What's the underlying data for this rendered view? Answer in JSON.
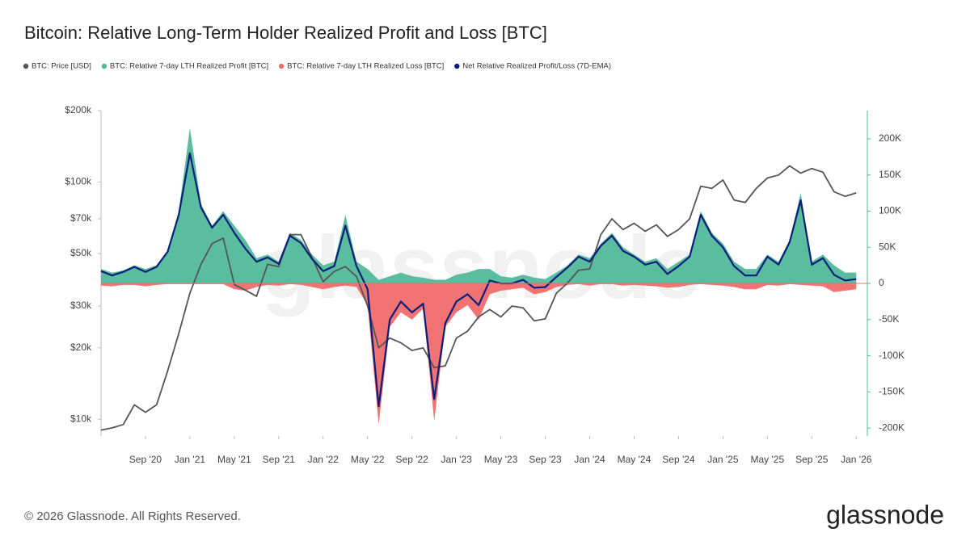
{
  "chart_data": {
    "type": "line",
    "title": "Bitcoin: Relative Long-Term Holder Realized Profit and Loss [BTC]",
    "footer": "© 2026 Glassnode. All Rights Reserved.",
    "brand": "glassnode",
    "watermark": "glassnode",
    "x": [
      "2020-05",
      "2020-06",
      "2020-07",
      "2020-08",
      "2020-09",
      "2020-10",
      "2020-11",
      "2020-12",
      "2021-01",
      "2021-02",
      "2021-03",
      "2021-04",
      "2021-05",
      "2021-06",
      "2021-07",
      "2021-08",
      "2021-09",
      "2021-10",
      "2021-11",
      "2021-12",
      "2022-01",
      "2022-02",
      "2022-03",
      "2022-04",
      "2022-05",
      "2022-06",
      "2022-07",
      "2022-08",
      "2022-09",
      "2022-10",
      "2022-11",
      "2022-12",
      "2023-01",
      "2023-02",
      "2023-03",
      "2023-04",
      "2023-05",
      "2023-06",
      "2023-07",
      "2023-08",
      "2023-09",
      "2023-10",
      "2023-11",
      "2023-12",
      "2024-01",
      "2024-02",
      "2024-03",
      "2024-04",
      "2024-05",
      "2024-06",
      "2024-07",
      "2024-08",
      "2024-09",
      "2024-10",
      "2024-11",
      "2024-12",
      "2025-01",
      "2025-02",
      "2025-03",
      "2025-04",
      "2025-05",
      "2025-06",
      "2025-07",
      "2025-08",
      "2025-09",
      "2025-10",
      "2025-11",
      "2025-12",
      "2026-01"
    ],
    "xlim": [
      "2020-05",
      "2026-02"
    ],
    "xticks": [
      {
        "value": "2020-09",
        "label": "Sep '20"
      },
      {
        "value": "2021-01",
        "label": "Jan '21"
      },
      {
        "value": "2021-05",
        "label": "May '21"
      },
      {
        "value": "2021-09",
        "label": "Sep '21"
      },
      {
        "value": "2022-01",
        "label": "Jan '22"
      },
      {
        "value": "2022-05",
        "label": "May '22"
      },
      {
        "value": "2022-09",
        "label": "Sep '22"
      },
      {
        "value": "2023-01",
        "label": "Jan '23"
      },
      {
        "value": "2023-05",
        "label": "May '23"
      },
      {
        "value": "2023-09",
        "label": "Sep '23"
      },
      {
        "value": "2024-01",
        "label": "Jan '24"
      },
      {
        "value": "2024-05",
        "label": "May '24"
      },
      {
        "value": "2024-09",
        "label": "Sep '24"
      },
      {
        "value": "2025-01",
        "label": "Jan '25"
      },
      {
        "value": "2025-05",
        "label": "May '25"
      },
      {
        "value": "2025-09",
        "label": "Sep '25"
      },
      {
        "value": "2026-01",
        "label": "Jan '26"
      }
    ],
    "ylog": true,
    "ylim": [
      8500,
      200000
    ],
    "yticks": [
      {
        "value": 10000,
        "label": "$10k"
      },
      {
        "value": 20000,
        "label": "$20k"
      },
      {
        "value": 30000,
        "label": "$30k"
      },
      {
        "value": 50000,
        "label": "$50k"
      },
      {
        "value": 70000,
        "label": "$70k"
      },
      {
        "value": 100000,
        "label": "$100k"
      },
      {
        "value": 200000,
        "label": "$200k"
      }
    ],
    "y2lim": [
      -211000,
      239000
    ],
    "y2ticks": [
      {
        "value": -200000,
        "label": "-200K"
      },
      {
        "value": -150000,
        "label": "-150K"
      },
      {
        "value": -100000,
        "label": "-100K"
      },
      {
        "value": -50000,
        "label": "-50K"
      },
      0,
      {
        "value": 50000,
        "label": "50K"
      },
      {
        "value": 100000,
        "label": "100K"
      },
      {
        "value": 150000,
        "label": "150K"
      },
      {
        "value": 200000,
        "label": "200K"
      }
    ],
    "y2_color": "#52b99a",
    "series": [
      {
        "name": "BTC: Price [USD]",
        "color": "#555555",
        "style": "line",
        "values": [
          9000,
          9200,
          9500,
          11500,
          10700,
          11500,
          16000,
          23000,
          34000,
          45000,
          55000,
          58000,
          37000,
          35000,
          33000,
          45000,
          44000,
          60000,
          60000,
          48000,
          38000,
          42000,
          44000,
          40000,
          30000,
          20000,
          22000,
          21000,
          19500,
          20000,
          16500,
          16800,
          22000,
          23500,
          27000,
          29000,
          27000,
          30000,
          29500,
          26000,
          26500,
          34000,
          37500,
          42500,
          43000,
          60000,
          70000,
          63000,
          67000,
          62000,
          66000,
          59000,
          63000,
          70000,
          96000,
          94000,
          102000,
          84000,
          82000,
          94000,
          104000,
          107000,
          117000,
          109000,
          114000,
          110000,
          91000,
          87000,
          90000
        ]
      },
      {
        "name": "BTC: Relative 7-day LTH Realized Profit [BTC]",
        "color": "#52b99a",
        "style": "area",
        "axis": "y2",
        "values": [
          20000,
          15000,
          18000,
          25000,
          20000,
          25000,
          45000,
          100000,
          215000,
          110000,
          80000,
          100000,
          80000,
          60000,
          35000,
          40000,
          30000,
          70000,
          60000,
          40000,
          25000,
          30000,
          95000,
          30000,
          20000,
          5000,
          10000,
          15000,
          10000,
          8000,
          5000,
          5000,
          12000,
          15000,
          20000,
          20000,
          10000,
          8000,
          12000,
          8000,
          6000,
          15000,
          25000,
          40000,
          35000,
          55000,
          70000,
          50000,
          40000,
          30000,
          35000,
          20000,
          30000,
          40000,
          100000,
          70000,
          55000,
          30000,
          20000,
          20000,
          40000,
          30000,
          60000,
          125000,
          30000,
          40000,
          25000,
          15000,
          15000
        ]
      },
      {
        "name": "BTC: Relative 7-day LTH Realized Loss [BTC]",
        "color": "#f06b6b",
        "style": "area",
        "axis": "y2",
        "values": [
          -3000,
          -4000,
          -2000,
          -2000,
          -4000,
          -2000,
          -1000,
          -1000,
          -1000,
          -1000,
          -1000,
          -1000,
          -8000,
          -10000,
          -5000,
          -2000,
          -3000,
          -1000,
          -2000,
          -5000,
          -8000,
          -5000,
          -3000,
          -5000,
          -30000,
          -195000,
          -60000,
          -40000,
          -50000,
          -35000,
          -190000,
          -60000,
          -40000,
          -30000,
          -50000,
          -15000,
          -10000,
          -8000,
          -6000,
          -15000,
          -12000,
          -5000,
          -2000,
          -1000,
          -3000,
          -1000,
          -1000,
          -3000,
          -2000,
          -3000,
          -4000,
          -6000,
          -5000,
          -2000,
          -1000,
          -2000,
          -3000,
          -5000,
          -8000,
          -8000,
          -2000,
          -3000,
          -1000,
          -2000,
          -3000,
          -4000,
          -12000,
          -10000,
          -8000
        ]
      },
      {
        "name": "Net Relative Realized Profit/Loss (7D-EMA)",
        "color": "#0a1f7a",
        "style": "line",
        "axis": "y2",
        "values": [
          17000,
          11000,
          16000,
          23000,
          16000,
          23000,
          44000,
          95000,
          180000,
          105000,
          77000,
          95000,
          70000,
          48000,
          30000,
          36000,
          27000,
          66000,
          56000,
          34000,
          17000,
          24000,
          80000,
          24000,
          -8000,
          -170000,
          -50000,
          -25000,
          -40000,
          -28000,
          -160000,
          -55000,
          -25000,
          -15000,
          -30000,
          4000,
          0,
          0,
          5000,
          -6000,
          -5000,
          9000,
          22000,
          37000,
          30000,
          52000,
          66000,
          45000,
          37000,
          26000,
          30000,
          13000,
          24000,
          37000,
          95000,
          66000,
          50000,
          24000,
          11000,
          11000,
          37000,
          26000,
          57000,
          115000,
          26000,
          35000,
          12000,
          4000,
          6000
        ]
      }
    ]
  }
}
